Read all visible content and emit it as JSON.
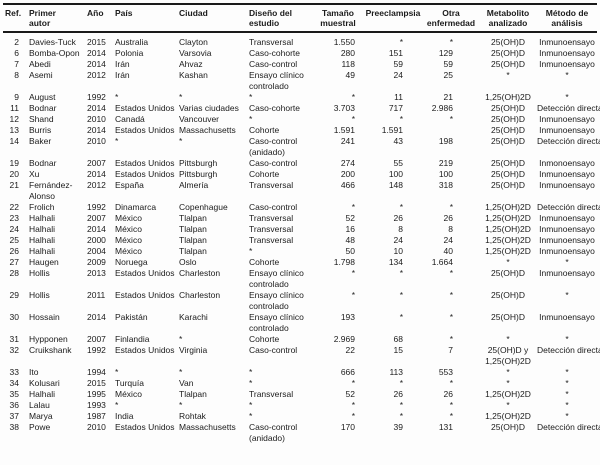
{
  "table": {
    "headers": [
      "Ref.",
      "Primer autor",
      "Año",
      "País",
      "Ciudad",
      "Diseño del estudio",
      "Tamaño muestral",
      "Preeclampsia",
      "Otra enfermedad",
      "Metabolito analizado",
      "Método de análisis"
    ],
    "rows": [
      [
        "2",
        "Davies-Tuck",
        "2015",
        "Australia",
        "Clayton",
        "Transversal",
        "1.550",
        "*",
        "*",
        "25(OH)D",
        "Inmunoensayo"
      ],
      [
        "6",
        "Bomba-Opon",
        "2014",
        "Polonia",
        "Varsovia",
        "Caso-cohorte",
        "280",
        "151",
        "129",
        "25(OH)D",
        "Inmunoensayo"
      ],
      [
        "7",
        "Abedi",
        "2014",
        "Irán",
        "Ahvaz",
        "Caso-control",
        "118",
        "59",
        "59",
        "25(OH)D",
        "Inmunoensayo"
      ],
      [
        "8",
        "Asemi",
        "2012",
        "Irán",
        "Kashan",
        "Ensayo clínico controlado",
        "49",
        "24",
        "25",
        "*",
        "*"
      ],
      [
        "9",
        "August",
        "1992",
        "*",
        "*",
        "*",
        "*",
        "11",
        "21",
        "1,25(OH)2D",
        "*"
      ],
      [
        "11",
        "Bodnar",
        "2014",
        "Estados Unidos",
        "Varias ciudades",
        "Caso-cohorte",
        "3.703",
        "717",
        "2.986",
        "25(OH)D",
        "Detección directa"
      ],
      [
        "12",
        "Shand",
        "2010",
        "Canadá",
        "Vancouver",
        "*",
        "*",
        "*",
        "*",
        "25(OH)D",
        "Inmunoensayo"
      ],
      [
        "13",
        "Burris",
        "2014",
        "Estados Unidos",
        "Massachusetts",
        "Cohorte",
        "1.591",
        "1.591",
        "",
        "25(OH)D",
        "Inmunoensayo"
      ],
      [
        "14",
        "Baker",
        "2010",
        "*",
        "*",
        "Caso-control (anidado)",
        "241",
        "43",
        "198",
        "25(OH)D",
        "Detección directa"
      ],
      [
        "19",
        "Bodnar",
        "2007",
        "Estados Unidos",
        "Pittsburgh",
        "Caso-control",
        "274",
        "55",
        "219",
        "25(OH)D",
        "Inmonoensayo"
      ],
      [
        "20",
        "Xu",
        "2014",
        "Estados Unidos",
        "Pittsburgh",
        "Cohorte",
        "200",
        "100",
        "100",
        "25(OH)D",
        "Inmunoensayo"
      ],
      [
        "21",
        "Fernández-Alonso",
        "2012",
        "España",
        "Almería",
        "Transversal",
        "466",
        "148",
        "318",
        "25(OH)D",
        "Inmunoensayo"
      ],
      [
        "22",
        "Frolich",
        "1992",
        "Dinamarca",
        "Copenhague",
        "Caso-control",
        "*",
        "*",
        "*",
        "1,25(OH)2D",
        "Detección directa"
      ],
      [
        "23",
        "Halhali",
        "2007",
        "México",
        "Tlalpan",
        "Transversal",
        "52",
        "26",
        "26",
        "1,25(OH)2D",
        "Inmunoensayo"
      ],
      [
        "24",
        "Halhali",
        "2014",
        "México",
        "Tlalpan",
        "Transversal",
        "16",
        "8",
        "8",
        "1,25(OH)2D",
        "Inmunoensayo"
      ],
      [
        "25",
        "Halhali",
        "2000",
        "México",
        "Tlalpan",
        "Transversal",
        "48",
        "24",
        "24",
        "1,25(OH)2D",
        "Inmunoensayo"
      ],
      [
        "26",
        "Halhali",
        "2004",
        "México",
        "Tlalpan",
        "*",
        "50",
        "10",
        "40",
        "1,25(OH)2D",
        "Inmunoensayo"
      ],
      [
        "27",
        "Haugen",
        "2009",
        "Noruega",
        "Oslo",
        "Cohorte",
        "1.798",
        "134",
        "1.664",
        "*",
        "*"
      ],
      [
        "28",
        "Hollis",
        "2013",
        "Estados Unidos",
        "Charleston",
        "Ensayo clínico controlado",
        "*",
        "*",
        "*",
        "25(OH)D",
        "Inmunoensayo"
      ],
      [
        "29",
        "Hollis",
        "2011",
        "Estados Unidos",
        "Charleston",
        "Ensayo clínico controlado",
        "*",
        "*",
        "*",
        "25(OH)D",
        "*"
      ],
      [
        "30",
        "Hossain",
        "2014",
        "Pakistán",
        "Karachi",
        "Ensayo clínico controlado",
        "193",
        "*",
        "*",
        "25(OH)D",
        "Inmunoensayo"
      ],
      [
        "31",
        "Hypponen",
        "2007",
        "Finlandia",
        "*",
        "Cohorte",
        "2.969",
        "68",
        "*",
        "*",
        "*"
      ],
      [
        "32",
        "Cruikshank",
        "1992",
        "Estados Unidos",
        "Virginia",
        "Caso-control",
        "22",
        "15",
        "7",
        "25(OH)D y 1,25(OH)2D",
        "Detección directa"
      ],
      [
        "33",
        "Ito",
        "1994",
        "*",
        "*",
        "*",
        "666",
        "113",
        "553",
        "*",
        "*"
      ],
      [
        "34",
        "Kolusari",
        "2015",
        "Turquía",
        "Van",
        "*",
        "*",
        "*",
        "*",
        "*",
        "*"
      ],
      [
        "35",
        "Halhali",
        "1995",
        "México",
        "Tlalpan",
        "Transversal",
        "52",
        "26",
        "26",
        "1,25(OH)2D",
        "*"
      ],
      [
        "36",
        "Lalau",
        "1993",
        "*",
        "*",
        "*",
        "*",
        "*",
        "*",
        "*",
        "*"
      ],
      [
        "37",
        "Marya",
        "1987",
        "India",
        "Rohtak",
        "*",
        "*",
        "*",
        "*",
        "1,25(OH)2D",
        "*"
      ],
      [
        "38",
        "Powe",
        "2010",
        "Estados Unidos",
        "Massachusetts",
        "Caso-control (anidado)",
        "170",
        "39",
        "131",
        "25(OH)D",
        "Detección directa"
      ]
    ]
  }
}
